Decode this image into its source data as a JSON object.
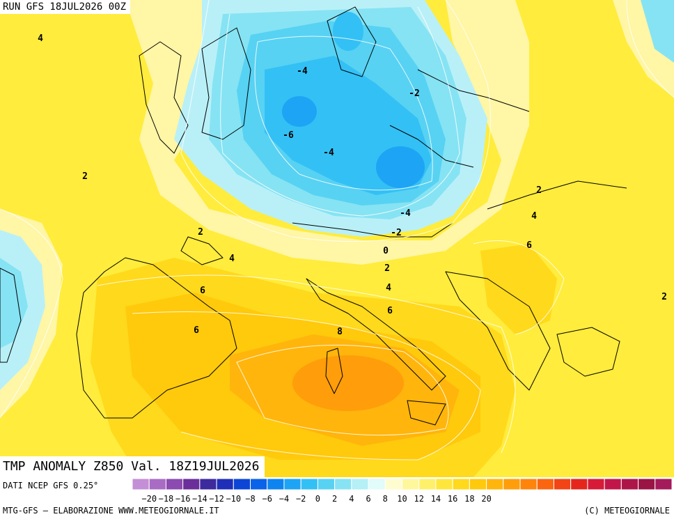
{
  "header": {
    "run_title": "RUN GFS 18JUL2026 00Z"
  },
  "map": {
    "title": "TMP ANOMALY Z850 Val. 18Z19JUL2026",
    "contour_labels": [
      "4",
      "2",
      "-4",
      "-2",
      "-6",
      "-4",
      "2",
      "-4",
      "-2",
      "4",
      "6",
      "0",
      "2",
      "6",
      "4",
      "6",
      "2",
      "8",
      "6",
      "4",
      "2",
      "2"
    ]
  },
  "footer": {
    "data_source": "DATI NCEP GFS 0.25°",
    "credit_left": "MTG-GFS – ELABORAZIONE WWW.METEOGIORNALE.IT",
    "credit_right": "(C) METEOGIORNALE"
  },
  "colorbar": {
    "tick_labels": [
      "-20",
      "-18",
      "-16",
      "-14",
      "-12",
      "-10",
      "-8",
      "-6",
      "-4",
      "-2",
      "0",
      "2",
      "4",
      "6",
      "8",
      "10",
      "12",
      "14",
      "16",
      "18",
      "20"
    ],
    "colors": [
      "#c38fd6",
      "#a96cc5",
      "#8b4bb0",
      "#6a2f9a",
      "#3d2a9c",
      "#1f2fb8",
      "#0d45d6",
      "#0a63e8",
      "#0e84f0",
      "#1ea4f4",
      "#33c0f5",
      "#57d2f3",
      "#86e3f3",
      "#b4f0f6",
      "#e2fbfb",
      "#fffccf",
      "#fff79c",
      "#fff06a",
      "#ffe63c",
      "#ffd91b",
      "#ffc90c",
      "#ffb50b",
      "#ff9d0a",
      "#ff840b",
      "#fb6510",
      "#f24414",
      "#e4261d",
      "#d61a38",
      "#c2164a",
      "#ad1548",
      "#9a1444",
      "#a51a5a"
    ]
  }
}
